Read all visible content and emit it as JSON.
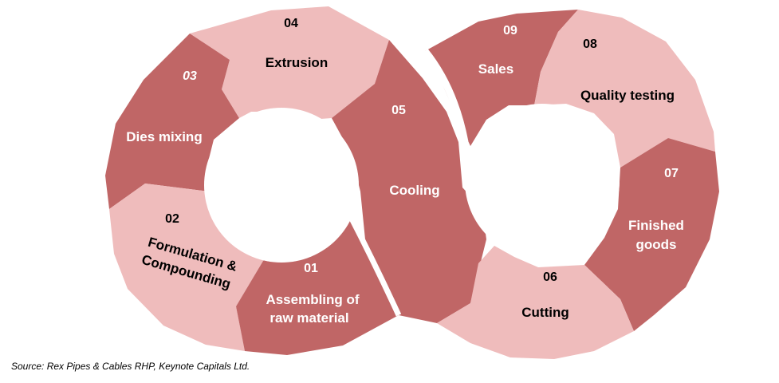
{
  "colors": {
    "dark": "#c06666",
    "light": "#efbcbc"
  },
  "steps": [
    {
      "number": "01",
      "label_lines": [
        "Assembling of",
        "raw material"
      ]
    },
    {
      "number": "02",
      "label_lines": [
        "Formulation &",
        "Compounding"
      ]
    },
    {
      "number": "03",
      "label_lines": [
        "Dies mixing"
      ]
    },
    {
      "number": "04",
      "label_lines": [
        "Extrusion"
      ]
    },
    {
      "number": "05",
      "label_lines": [
        "Cooling"
      ]
    },
    {
      "number": "06",
      "label_lines": [
        "Cutting"
      ]
    },
    {
      "number": "07",
      "label_lines": [
        "Finished",
        "goods"
      ]
    },
    {
      "number": "08",
      "label_lines": [
        "Quality testing"
      ]
    },
    {
      "number": "09",
      "label_lines": [
        "Sales"
      ]
    }
  ],
  "source": "Source: Rex Pipes & Cables RHP, Keynote Capitals Ltd."
}
